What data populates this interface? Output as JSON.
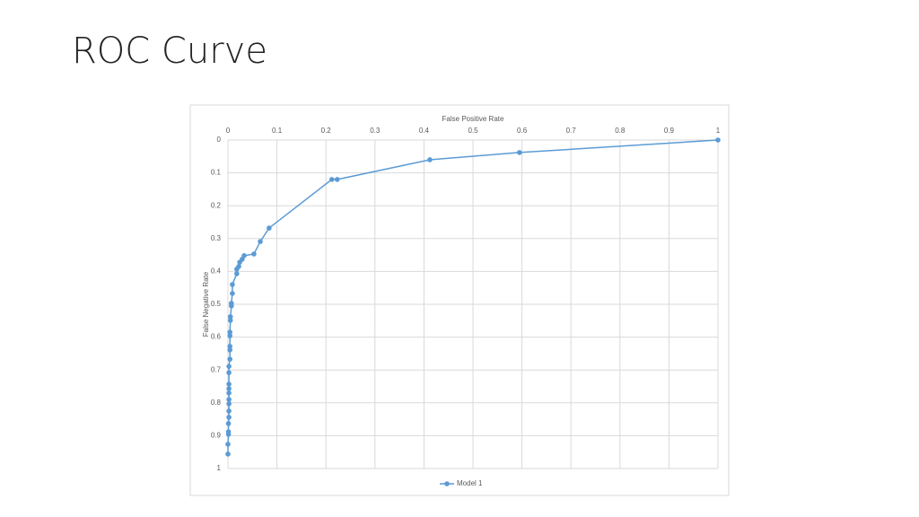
{
  "chart_data": {
    "type": "line",
    "title": "ROC Curve",
    "x_label": "False Positive Rate",
    "y_label": "False Negative Rate",
    "x": [
      1,
      0.595,
      0.412,
      0.223,
      0.212,
      0.084,
      0.066,
      0.053,
      0.033,
      0.029,
      0.024,
      0.022,
      0.018,
      0.018,
      0.009,
      0.009,
      0.007,
      0.007,
      0.005,
      0.005,
      0.004,
      0.004,
      0.004,
      0.004,
      0.004,
      0.002,
      0.002,
      0.002,
      0.002,
      0.002,
      0.002,
      0.002,
      0.002,
      0.002,
      0.001,
      0.001,
      0.001,
      0,
      0
    ],
    "series": [
      {
        "name": "Model 1",
        "color": "#5b9bd5",
        "values": [
          0,
          0.038,
          0.06,
          0.12,
          0.12,
          0.268,
          0.309,
          0.347,
          0.352,
          0.363,
          0.372,
          0.385,
          0.393,
          0.407,
          0.44,
          0.467,
          0.497,
          0.505,
          0.538,
          0.549,
          0.585,
          0.596,
          0.628,
          0.639,
          0.667,
          0.689,
          0.708,
          0.743,
          0.757,
          0.77,
          0.79,
          0.803,
          0.825,
          0.844,
          0.863,
          0.888,
          0.896,
          0.926,
          0.956
        ]
      }
    ],
    "xlim": [
      0,
      1
    ],
    "xticks": [
      0,
      0.1,
      0.2,
      0.3,
      0.4,
      0.5,
      0.6,
      0.7,
      0.8,
      0.9,
      1
    ],
    "ylim": [
      1,
      0
    ],
    "yticks": [
      0,
      0.1,
      0.2,
      0.3,
      0.4,
      0.5,
      0.6,
      0.7,
      0.8,
      0.9,
      1
    ],
    "x_axis_position": "top",
    "grid": true,
    "legend": "bottom"
  }
}
